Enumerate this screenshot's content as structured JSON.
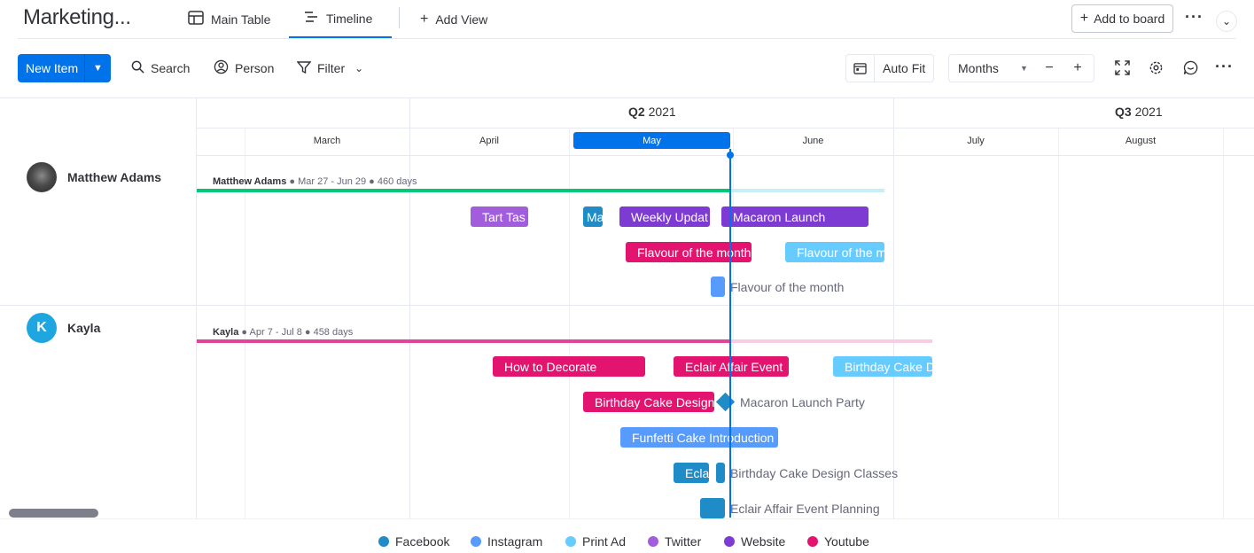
{
  "header": {
    "board_title": "Marketing...",
    "tabs": [
      {
        "label": "Main Table",
        "icon": "table-icon"
      },
      {
        "label": "Timeline",
        "icon": "timeline-icon"
      }
    ],
    "add_view_label": "Add View",
    "add_to_board_label": "Add to board"
  },
  "toolbar": {
    "new_item_label": "New Item",
    "search_label": "Search",
    "person_label": "Person",
    "filter_label": "Filter",
    "auto_fit_label": "Auto Fit",
    "zoom_select": "Months",
    "zoom_out": "−",
    "zoom_in": "+"
  },
  "timeline": {
    "quarters": [
      {
        "q": "Q2",
        "year": "2021"
      },
      {
        "q": "Q3",
        "year": "2021"
      }
    ],
    "months": [
      "March",
      "April",
      "May",
      "June",
      "July",
      "August"
    ],
    "current_month": "May",
    "groups": [
      {
        "person": "Matthew Adams",
        "label_name": "Matthew Adams",
        "label_range": "● Mar 27 - Jun 29 ● 460 days",
        "items": [
          {
            "label": "Tart Tas",
            "color": "#a25ddc"
          },
          {
            "label": "Ma",
            "color": "#1f8bc7"
          },
          {
            "label": "Weekly Updat",
            "color": "#7e3bd3"
          },
          {
            "label": "Macaron Launch",
            "color": "#7e3bd3"
          },
          {
            "label": "Flavour of the month",
            "color": "#e2146f"
          },
          {
            "label": "Flavour of the m",
            "color": "#66ccff"
          },
          {
            "label": "Flavour of the month",
            "color": "#579bfc"
          }
        ]
      },
      {
        "person": "Kayla",
        "avatar_initial": "K",
        "label_name": "Kayla",
        "label_range": "● Apr 7 - Jul 8 ● 458 days",
        "items": [
          {
            "label": "How to Decorate",
            "color": "#e2146f"
          },
          {
            "label": "Eclair Affair Event",
            "color": "#e2146f"
          },
          {
            "label": "Birthday Cake D",
            "color": "#66ccff"
          },
          {
            "label": "Birthday Cake Design",
            "color": "#e2146f"
          },
          {
            "label": "Macaron Launch Party",
            "color": "#1f8bc7"
          },
          {
            "label": "Funfetti Cake Introduction",
            "color": "#579bfc"
          },
          {
            "label": "Ecla",
            "color": "#1f8bc7"
          },
          {
            "label": "Birthday Cake Design Classes",
            "color": "#1f8bc7"
          },
          {
            "label": "Eclair Affair Event Planning",
            "color": "#1f8bc7"
          }
        ]
      }
    ]
  },
  "legend": [
    {
      "label": "Facebook",
      "color": "#1f8bc7"
    },
    {
      "label": "Instagram",
      "color": "#579bfc"
    },
    {
      "label": "Print Ad",
      "color": "#66ccff"
    },
    {
      "label": "Twitter",
      "color": "#a25ddc"
    },
    {
      "label": "Website",
      "color": "#7e3bd3"
    },
    {
      "label": "Youtube",
      "color": "#e2146f"
    }
  ]
}
